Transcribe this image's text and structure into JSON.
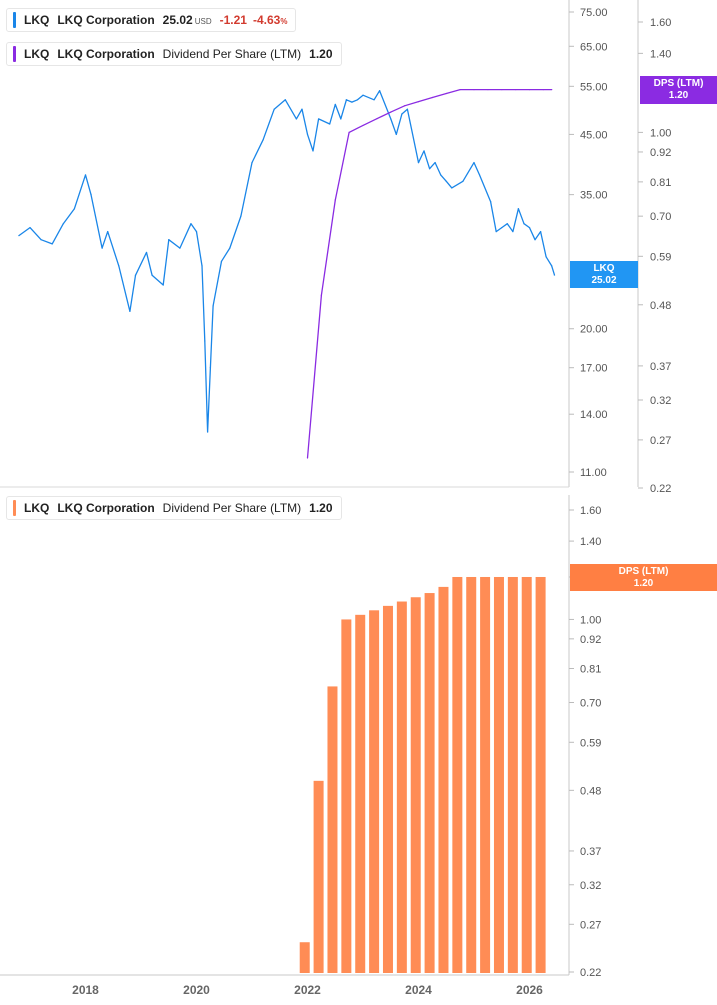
{
  "legend_top_price": {
    "ticker": "LKQ",
    "name": "LKQ Corporation",
    "value": "25.02",
    "currency": "USD",
    "change": "-1.21",
    "change_pct": "-4.63",
    "pct_sign": "%"
  },
  "legend_top_dps": {
    "ticker": "LKQ",
    "name": "LKQ Corporation",
    "metric": "Dividend Per Share (LTM)",
    "value": "1.20"
  },
  "legend_bottom_dps": {
    "ticker": "LKQ",
    "name": "LKQ Corporation",
    "metric": "Dividend Per Share (LTM)",
    "value": "1.20"
  },
  "badges": {
    "price": {
      "line1": "LKQ",
      "line2": "25.02"
    },
    "dps_top": {
      "line1": "DPS (LTM)",
      "line2": "1.20"
    },
    "dps_bottom": {
      "line1": "DPS (LTM)",
      "line2": "1.20"
    }
  },
  "colors": {
    "price": "#1a86e8",
    "dps_line": "#8a2be2",
    "dps_bar": "#ff8c55",
    "badge_price": "#2196f3",
    "badge_dps_top": "#8b2be2",
    "badge_dps_bottom": "#ff7f43"
  },
  "chart_data": [
    {
      "type": "line",
      "log_scale": true,
      "y_ticks": [
        "75.00",
        "65.00",
        "55.00",
        "45.00",
        "35.00",
        "20.00",
        "17.00",
        "14.00",
        "11.00"
      ],
      "y2_ticks": [
        "1.60",
        "1.40",
        "1.00",
        "0.92",
        "0.81",
        "0.70",
        "0.59",
        "0.48",
        "0.37",
        "0.32",
        "0.27",
        "0.22"
      ],
      "series": [
        {
          "name": "LKQ",
          "x": [
            2016.8,
            2017.0,
            2017.2,
            2017.4,
            2017.6,
            2017.8,
            2018.0,
            2018.1,
            2018.3,
            2018.4,
            2018.6,
            2018.8,
            2018.9,
            2019.1,
            2019.2,
            2019.4,
            2019.5,
            2019.7,
            2019.9,
            2020.0,
            2020.1,
            2020.15,
            2020.2,
            2020.25,
            2020.3,
            2020.45,
            2020.6,
            2020.8,
            2021.0,
            2021.2,
            2021.4,
            2021.6,
            2021.8,
            2021.9,
            2022.0,
            2022.1,
            2022.2,
            2022.4,
            2022.5,
            2022.6,
            2022.7,
            2022.8,
            2022.9,
            2023.0,
            2023.2,
            2023.3,
            2023.5,
            2023.6,
            2023.7,
            2023.8,
            2024.0,
            2024.1,
            2024.2,
            2024.3,
            2024.4,
            2024.5,
            2024.6,
            2024.8,
            2025.0,
            2025.1,
            2025.3,
            2025.4,
            2025.5,
            2025.6,
            2025.7,
            2025.8,
            2025.9,
            2026.0,
            2026.1,
            2026.2,
            2026.3,
            2026.4,
            2026.45
          ],
          "y": [
            29.5,
            30.5,
            29.0,
            28.5,
            31.0,
            33.0,
            38.0,
            35.0,
            28.0,
            30.0,
            26.0,
            21.5,
            25.0,
            27.5,
            25.0,
            24.0,
            29.0,
            28.0,
            31.0,
            30.0,
            26.0,
            19.0,
            13.0,
            17.0,
            22.0,
            26.5,
            28.0,
            32.0,
            40.0,
            44.0,
            50.0,
            52.0,
            48.0,
            50.0,
            45.0,
            42.0,
            48.0,
            47.0,
            51.0,
            48.0,
            52.0,
            51.5,
            52.0,
            53.0,
            52.0,
            54.0,
            48.0,
            45.0,
            49.0,
            50.0,
            40.0,
            42.0,
            39.0,
            40.0,
            38.0,
            37.0,
            36.0,
            37.0,
            40.0,
            38.0,
            34.0,
            30.0,
            30.5,
            31.0,
            30.0,
            33.0,
            31.0,
            30.5,
            29.0,
            30.0,
            27.0,
            26.0,
            25.02
          ]
        },
        {
          "name": "Dividend Per Share (LTM)",
          "x": [
            2022.0,
            2022.25,
            2022.5,
            2022.75,
            2023.0,
            2023.25,
            2023.5,
            2023.75,
            2024.0,
            2024.25,
            2024.5,
            2024.75,
            2025.0,
            2025.25,
            2025.5,
            2025.75,
            2026.0,
            2026.25,
            2026.4
          ],
          "y": [
            0.25,
            0.5,
            0.75,
            1.0,
            1.03,
            1.06,
            1.09,
            1.12,
            1.14,
            1.16,
            1.18,
            1.2,
            1.2,
            1.2,
            1.2,
            1.2,
            1.2,
            1.2,
            1.2
          ]
        }
      ]
    },
    {
      "type": "bar",
      "log_scale": true,
      "y_ticks": [
        "1.60",
        "1.40",
        "1.20",
        "1.00",
        "0.92",
        "0.81",
        "0.70",
        "0.59",
        "0.48",
        "0.37",
        "0.32",
        "0.27",
        "0.22"
      ],
      "x_ticks": [
        "2018",
        "2020",
        "2022",
        "2024",
        "2026"
      ],
      "series": [
        {
          "name": "Dividend Per Share (LTM)",
          "x": [
            2021.95,
            2022.2,
            2022.45,
            2022.7,
            2022.95,
            2023.2,
            2023.45,
            2023.7,
            2023.95,
            2024.2,
            2024.45,
            2024.7,
            2024.95,
            2025.2,
            2025.45,
            2025.7,
            2025.95,
            2026.2
          ],
          "values": [
            0.25,
            0.5,
            0.75,
            1.0,
            1.02,
            1.04,
            1.06,
            1.08,
            1.1,
            1.12,
            1.15,
            1.2,
            1.2,
            1.2,
            1.2,
            1.2,
            1.2,
            1.2
          ]
        }
      ]
    }
  ]
}
